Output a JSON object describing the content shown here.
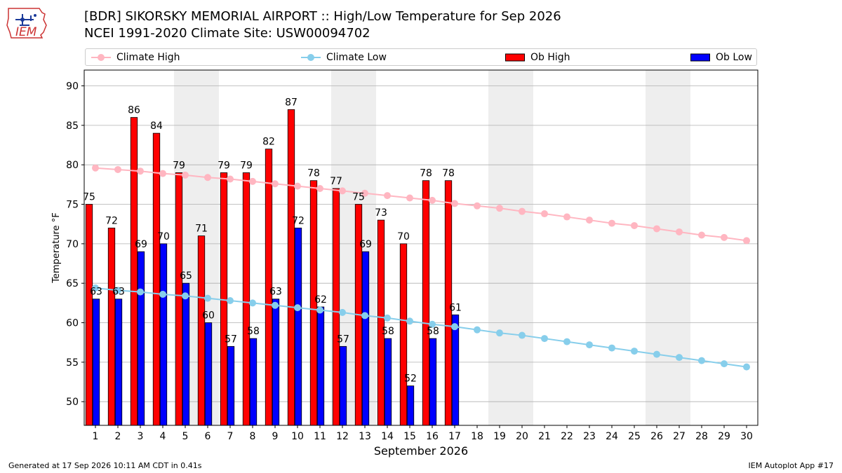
{
  "header": {
    "title": "[BDR] SIKORSKY MEMORIAL AIRPORT :: High/Low Temperature for Sep 2026",
    "subtitle": "NCEI 1991-2020 Climate Site: USW00094702",
    "logo_text": "IEM"
  },
  "footer": {
    "generated": "Generated at 17 Sep 2026 10:11 AM CDT in 0.41s",
    "app": "IEM Autoplot App #17"
  },
  "legend": {
    "climate_high": "Climate High",
    "climate_low": "Climate Low",
    "ob_high": "Ob High",
    "ob_low": "Ob Low"
  },
  "colors": {
    "climate_high": "#ffb6c1",
    "climate_low": "#87ceeb",
    "ob_high": "#ff0000",
    "ob_low": "#0000ff",
    "weekend_band": "#eeeeee",
    "grid": "#b0b0b0"
  },
  "chart_data": {
    "type": "bar",
    "xlabel": "September 2026",
    "ylabel": "Temperature °F",
    "ylim": [
      47,
      92
    ],
    "yticks": [
      50,
      55,
      60,
      65,
      70,
      75,
      80,
      85,
      90
    ],
    "xticks": [
      1,
      2,
      3,
      4,
      5,
      6,
      7,
      8,
      9,
      10,
      11,
      12,
      13,
      14,
      15,
      16,
      17,
      18,
      19,
      20,
      21,
      22,
      23,
      24,
      25,
      26,
      27,
      28,
      29,
      30
    ],
    "grid": "horizontal",
    "legend_position": "top",
    "shaded_days": [
      [
        5,
        6
      ],
      [
        12,
        13
      ],
      [
        19,
        20
      ],
      [
        26,
        27
      ]
    ],
    "ob_high": {
      "name": "Ob High",
      "days": [
        1,
        2,
        3,
        4,
        5,
        6,
        7,
        8,
        9,
        10,
        11,
        12,
        13,
        14,
        15,
        16,
        17
      ],
      "values": [
        75,
        72,
        86,
        84,
        79,
        71,
        79,
        79,
        82,
        87,
        78,
        77,
        75,
        73,
        70,
        78,
        78
      ]
    },
    "ob_low": {
      "name": "Ob Low",
      "days": [
        1,
        2,
        3,
        4,
        5,
        6,
        7,
        8,
        9,
        10,
        11,
        12,
        13,
        14,
        15,
        16,
        17
      ],
      "values": [
        63,
        63,
        69,
        70,
        65,
        60,
        57,
        58,
        63,
        72,
        62,
        57,
        69,
        58,
        52,
        58,
        61
      ]
    },
    "climate_high": {
      "name": "Climate High",
      "days": [
        1,
        2,
        3,
        4,
        5,
        6,
        7,
        8,
        9,
        10,
        11,
        12,
        13,
        14,
        15,
        16,
        17,
        18,
        19,
        20,
        21,
        22,
        23,
        24,
        25,
        26,
        27,
        28,
        29,
        30
      ],
      "values": [
        79.6,
        79.4,
        79.2,
        78.9,
        78.7,
        78.4,
        78.2,
        77.9,
        77.6,
        77.3,
        77.0,
        76.7,
        76.4,
        76.1,
        75.8,
        75.5,
        75.1,
        74.8,
        74.5,
        74.1,
        73.8,
        73.4,
        73.0,
        72.6,
        72.3,
        71.9,
        71.5,
        71.1,
        70.8,
        70.4
      ]
    },
    "climate_low": {
      "name": "Climate Low",
      "days": [
        1,
        2,
        3,
        4,
        5,
        6,
        7,
        8,
        9,
        10,
        11,
        12,
        13,
        14,
        15,
        16,
        17,
        18,
        19,
        20,
        21,
        22,
        23,
        24,
        25,
        26,
        27,
        28,
        29,
        30
      ],
      "values": [
        64.4,
        64.1,
        63.9,
        63.6,
        63.4,
        63.1,
        62.8,
        62.5,
        62.2,
        61.9,
        61.6,
        61.3,
        60.9,
        60.6,
        60.2,
        59.8,
        59.5,
        59.1,
        58.7,
        58.4,
        58.0,
        57.6,
        57.2,
        56.8,
        56.4,
        56.0,
        55.6,
        55.2,
        54.8,
        54.4
      ]
    }
  }
}
